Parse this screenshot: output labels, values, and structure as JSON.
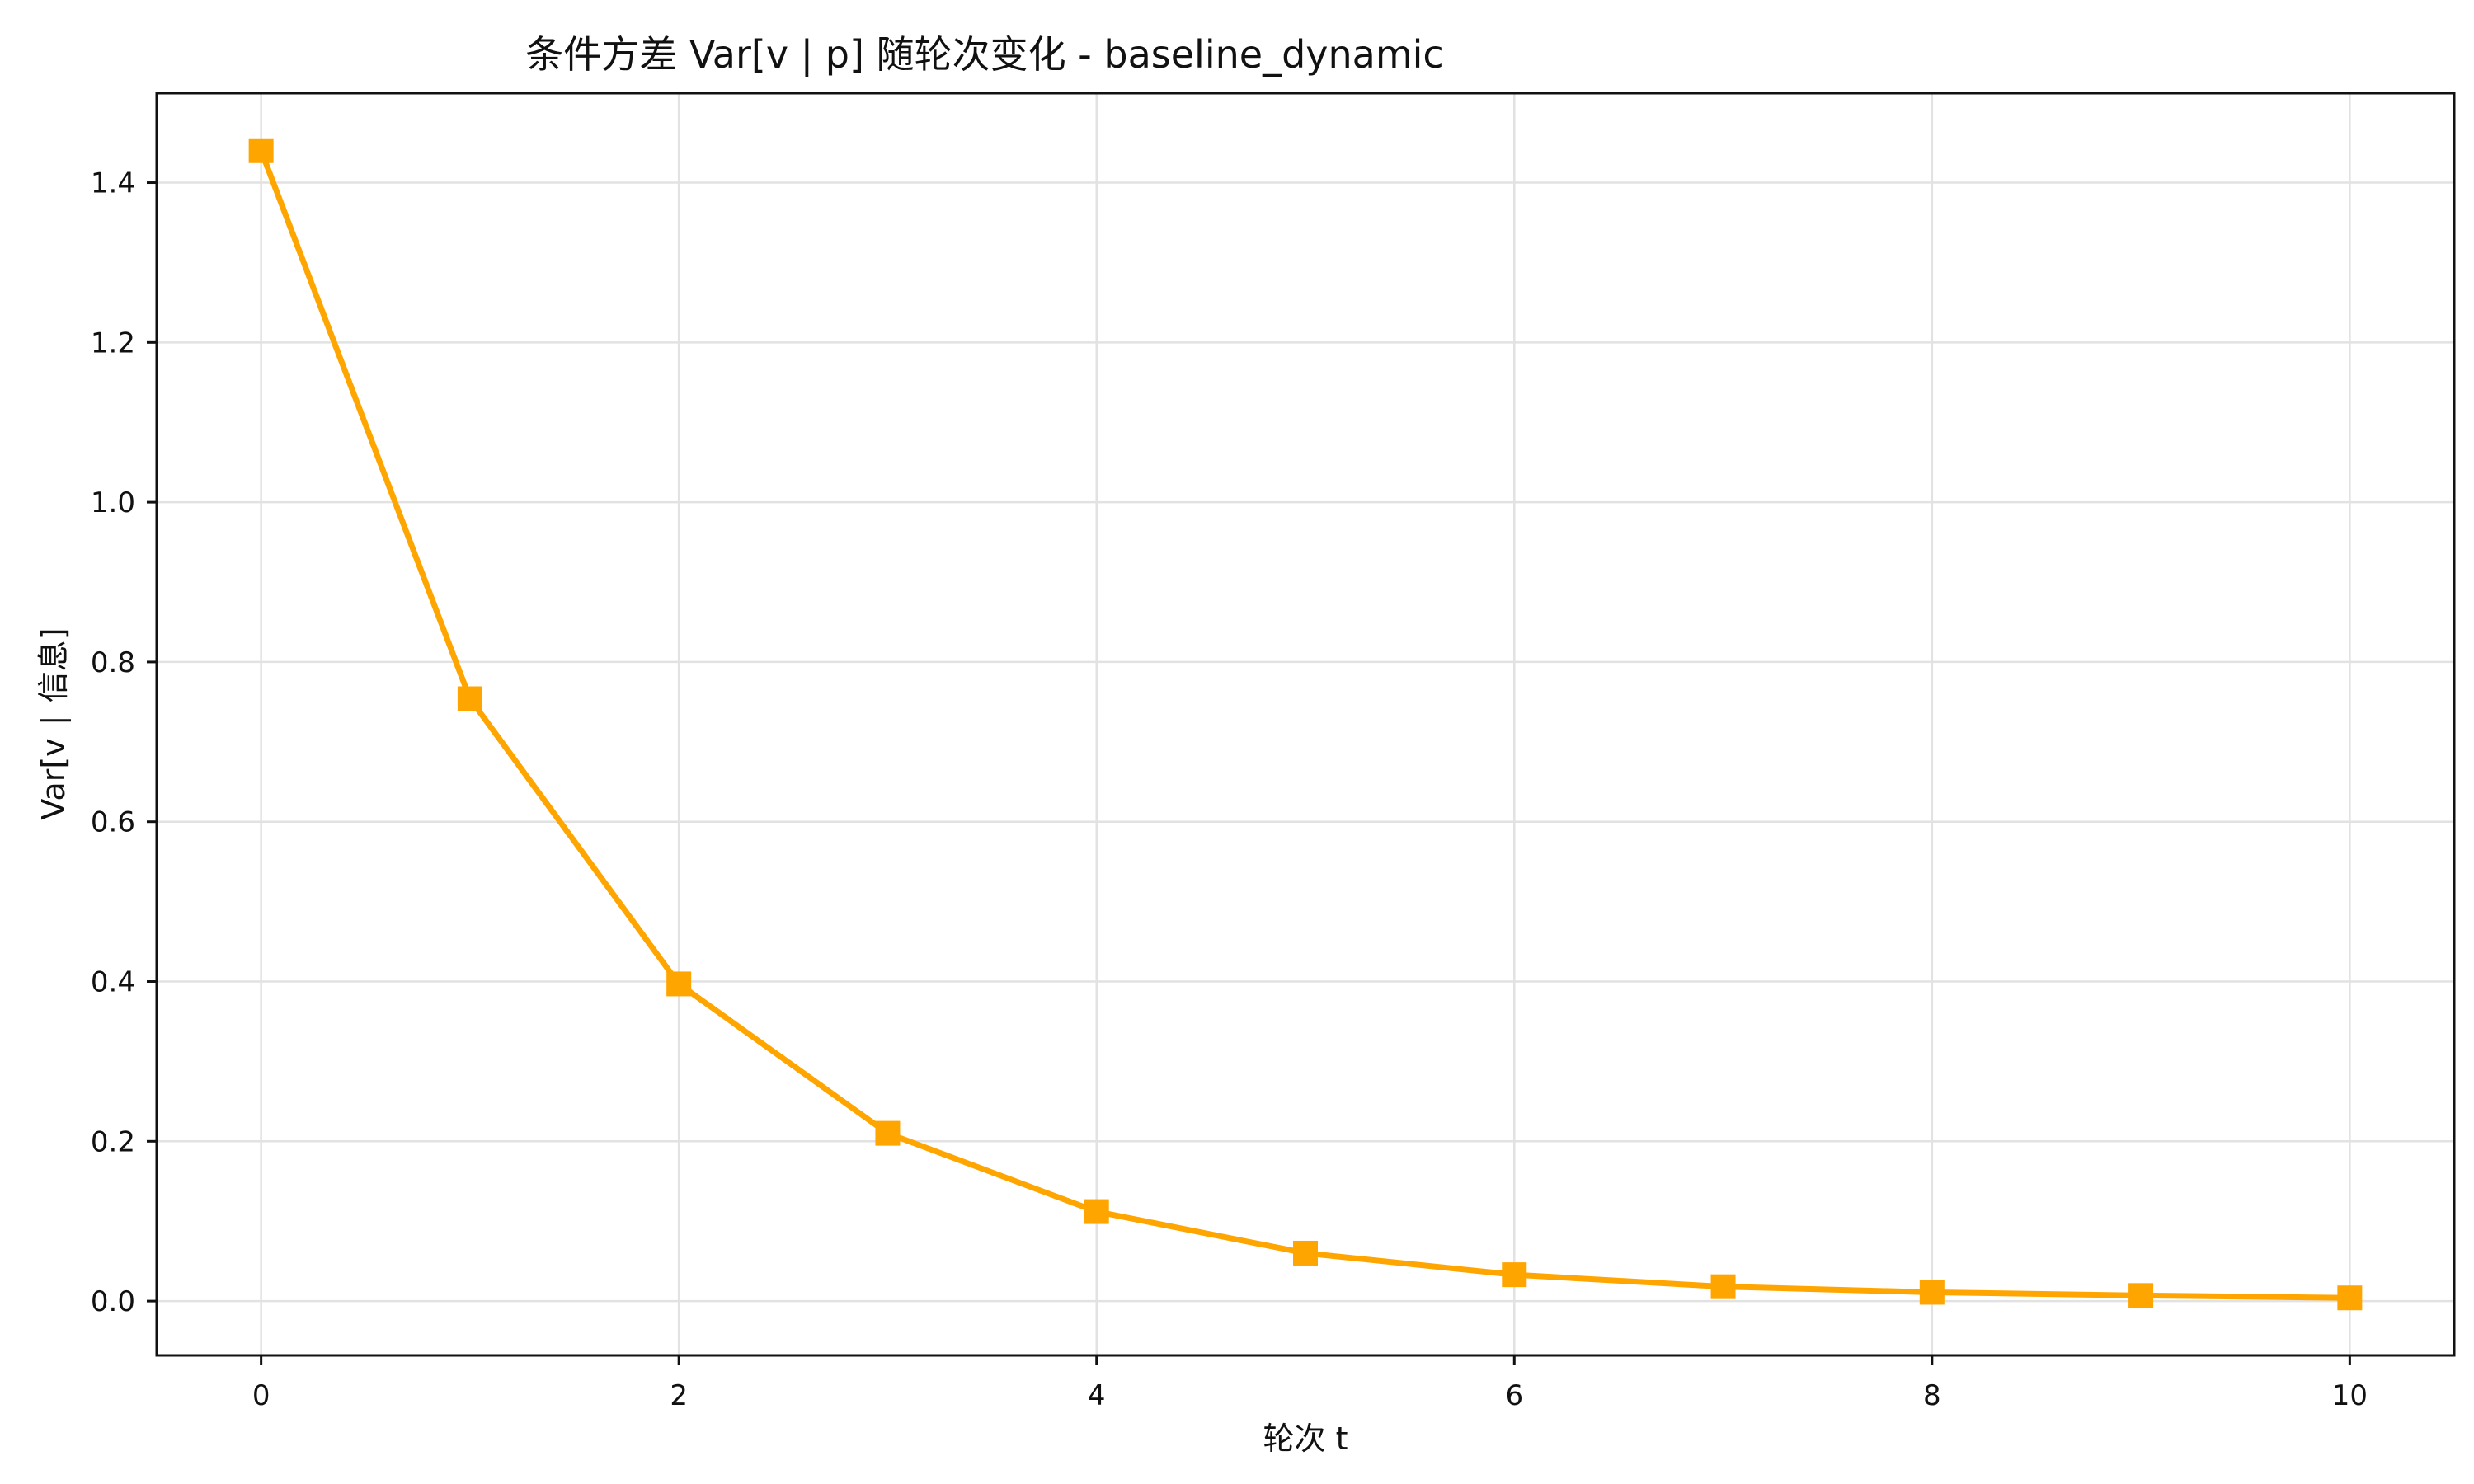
{
  "chart_data": {
    "type": "line",
    "title": "条件方差 Var[v | p] 随轮次变化 - baseline_dynamic",
    "xlabel": "轮次 t",
    "ylabel": "Var[v ∣ 信息]",
    "xlim": [
      -0.5,
      10.5
    ],
    "ylim": [
      -0.068,
      1.512
    ],
    "xticks": [
      0,
      2,
      4,
      6,
      8,
      10
    ],
    "xtick_labels": [
      "0",
      "2",
      "4",
      "6",
      "8",
      "10"
    ],
    "yticks": [
      0.0,
      0.2,
      0.4,
      0.6,
      0.8,
      1.0,
      1.2,
      1.4
    ],
    "ytick_labels": [
      "0.0",
      "0.2",
      "0.4",
      "0.6",
      "0.8",
      "1.0",
      "1.2",
      "1.4"
    ],
    "grid": true,
    "legend": "none",
    "series": [
      {
        "color": "#ffa500",
        "marker": "square",
        "x": [
          0,
          1,
          2,
          3,
          4,
          5,
          6,
          7,
          8,
          9,
          10
        ],
        "y": [
          1.44,
          0.754,
          0.397,
          0.21,
          0.112,
          0.06,
          0.033,
          0.018,
          0.011,
          0.007,
          0.004
        ]
      }
    ]
  }
}
